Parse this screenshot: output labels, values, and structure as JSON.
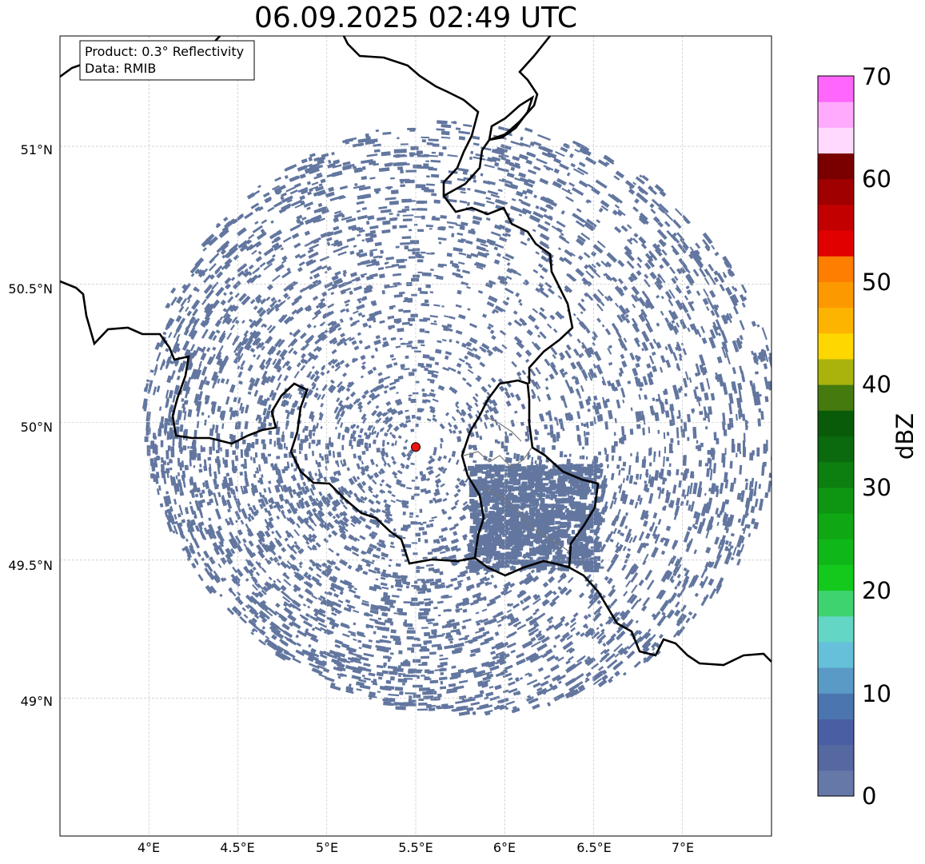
{
  "title": "06.09.2025 02:49 UTC",
  "info_box": {
    "product": "Product: 0.3° Reflectivity",
    "data_source": "Data: RMIB"
  },
  "colorbar": {
    "label": "dBZ",
    "ticks": [
      "0",
      "10",
      "20",
      "30",
      "40",
      "50",
      "60",
      "70"
    ],
    "colors": [
      "#6678a8",
      "#5668a0",
      "#4a5fa3",
      "#4b75ae",
      "#5a9ac6",
      "#66c0da",
      "#63d6c5",
      "#3fd370",
      "#12c91c",
      "#10b719",
      "#0fa814",
      "#0e9512",
      "#0c7f10",
      "#0a6a0d",
      "#0a5b09",
      "#447a0e",
      "#aab20c",
      "#fed700",
      "#fdb400",
      "#fd9900",
      "#fd7e00",
      "#e10000",
      "#c30000",
      "#a00000",
      "#7a0000",
      "#ffdafe",
      "#ffaafd",
      "#fe66fc",
      "#e836f0"
    ]
  },
  "axes": {
    "x_ticks": [
      "4°E",
      "4.5°E",
      "5°E",
      "5.5°E",
      "6°E",
      "6.5°E",
      "7°E"
    ],
    "y_ticks": [
      "51°N",
      "50.5°N",
      "50°N",
      "49.5°N",
      "49°N"
    ]
  },
  "map": {
    "lon_range": [
      3.5,
      7.5
    ],
    "lat_range": [
      48.5,
      51.4
    ],
    "radar_site": {
      "lon": 5.5,
      "lat": 49.91,
      "color": "#ee1111"
    },
    "echo_color": "#62769f",
    "border_color": "#000000",
    "grid": true
  }
}
